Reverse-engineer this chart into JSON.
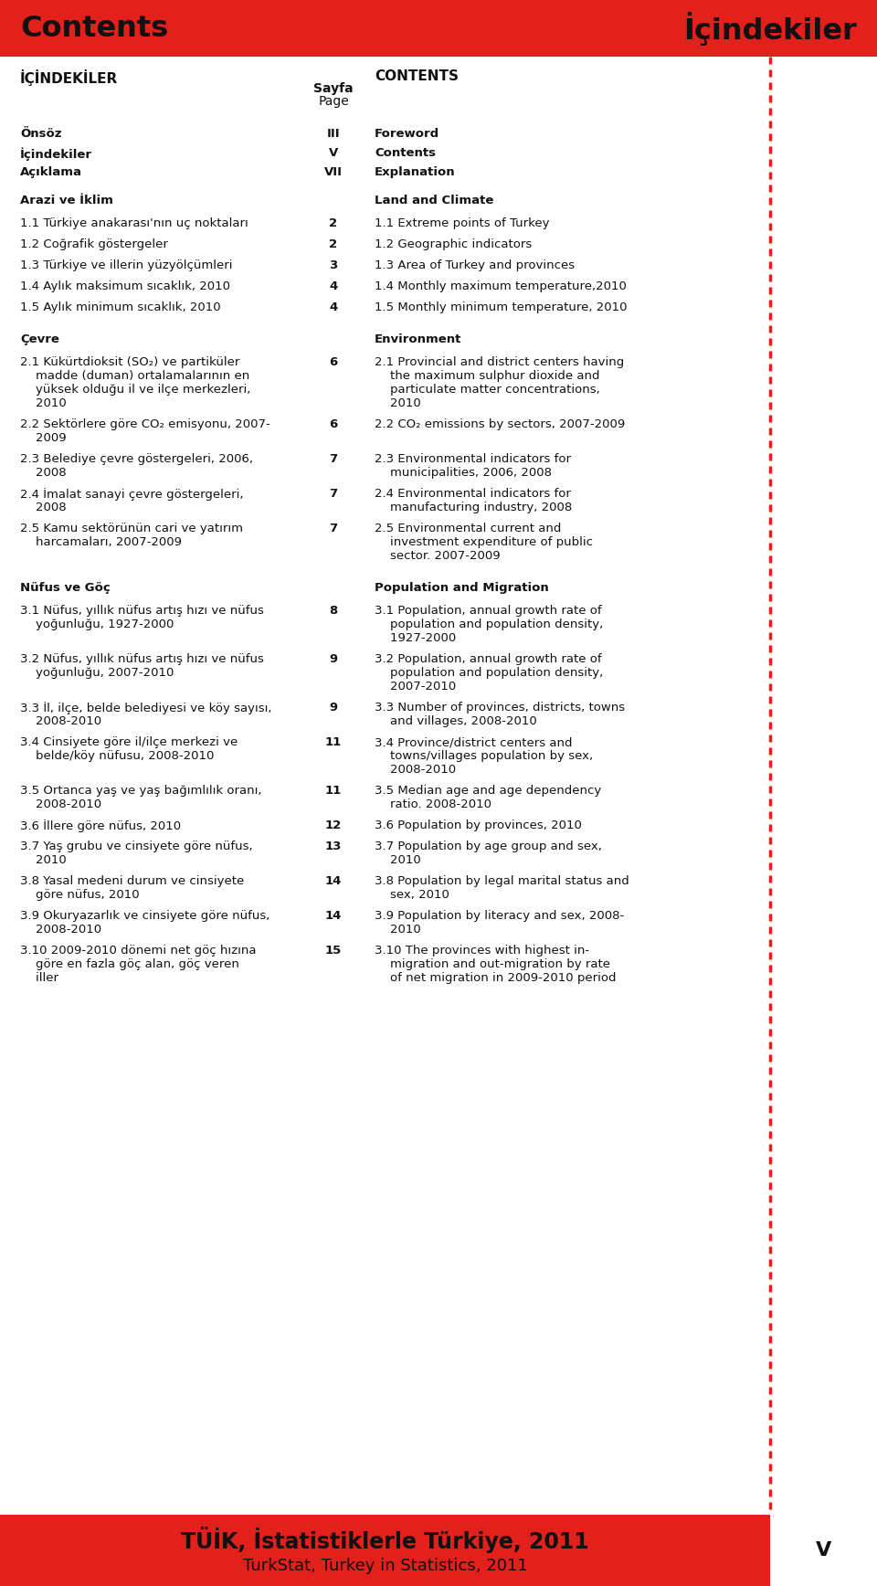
{
  "header_bg": "#E2201C",
  "header_text_left": "Contents",
  "header_text_right": "İçindekiler",
  "header_text_color": "#1a1a1a",
  "bg_color": "#ffffff",
  "footer_bg": "#E2201C",
  "footer_text1": "TÜİK, İstatistiklerle Türkiye, 2011",
  "footer_text2": "TurkStat, Turkey in Statistics, 2011",
  "page_number": "V",
  "col_headers": [
    "İÇİNDEKİLER",
    "Sayfa",
    "Page",
    "CONTENTS"
  ],
  "section_rows": [
    [
      "Önsöz",
      "III",
      "Foreword"
    ],
    [
      "İçindekiler",
      "V",
      "Contents"
    ],
    [
      "Açıklama",
      "VII",
      "Explanation"
    ]
  ],
  "rows": [
    [
      "Arazi ve İklim",
      "",
      "Land and Climate"
    ],
    [
      "1.1 Türkiye anakarası'nın uç noktaları",
      "2",
      "1.1 Extreme points of Turkey"
    ],
    [
      "1.2 Coğrafik göstergeler",
      "2",
      "1.2 Geographic indicators"
    ],
    [
      "1.3 Türkiye ve illerin yüzyölçümleri",
      "3",
      "1.3 Area of Turkey and provinces"
    ],
    [
      "1.4 Aylık maksimum sıcaklık, 2010",
      "4",
      "1.4 Monthly maximum temperature,2010"
    ],
    [
      "1.5 Aylık minimum sıcaklık, 2010",
      "4",
      "1.5 Monthly minimum temperature, 2010"
    ],
    [
      "",
      "",
      ""
    ],
    [
      "Çevre",
      "",
      "Environment"
    ],
    [
      "2.1 Kükürtdioksit (SO₂) ve partiküler\n    madde (duman) ortalamalarının en\n    yüksek olduğu il ve ilçe merkezleri,\n    2010",
      "6",
      "2.1 Provincial and district centers having\n    the maximum sulphur dioxide and\n    particulate matter concentrations,\n    2010"
    ],
    [
      "2.2 Sektörlere göre CO₂ emisyonu, 2007-\n    2009",
      "6",
      "2.2 CO₂ emissions by sectors, 2007-2009"
    ],
    [
      "2.3 Belediye çevre göstergeleri, 2006,\n    2008",
      "7",
      "2.3 Environmental indicators for\n    municipalities, 2006, 2008"
    ],
    [
      "2.4 İmalat sanayi çevre göstergeleri,\n    2008",
      "7",
      "2.4 Environmental indicators for\n    manufacturing industry, 2008"
    ],
    [
      "2.5 Kamu sektörünün cari ve yatırım\n    harcamaları, 2007-2009",
      "7",
      "2.5 Environmental current and\n    investment expenditure of public\n    sector. 2007-2009"
    ],
    [
      "",
      "",
      ""
    ],
    [
      "Nüfus ve Göç",
      "",
      "Population and Migration"
    ],
    [
      "3.1 Nüfus, yıllık nüfus artış hızı ve nüfus\n    yoğunluğu, 1927-2000",
      "8",
      "3.1 Population, annual growth rate of\n    population and population density,\n    1927-2000"
    ],
    [
      "3.2 Nüfus, yıllık nüfus artış hızı ve nüfus\n    yoğunluğu, 2007-2010",
      "9",
      "3.2 Population, annual growth rate of\n    population and population density,\n    2007-2010"
    ],
    [
      "3.3 İl, ilçe, belde belediyesi ve köy sayısı,\n    2008-2010",
      "9",
      "3.3 Number of provinces, districts, towns\n    and villages, 2008-2010"
    ],
    [
      "3.4 Cinsiyete göre il/ilçe merkezi ve\n    belde/köy nüfusu, 2008-2010",
      "11",
      "3.4 Province/district centers and\n    towns/villages population by sex,\n    2008-2010"
    ],
    [
      "3.5 Ortanca yaş ve yaş bağımlılık oranı,\n    2008-2010",
      "11",
      "3.5 Median age and age dependency\n    ratio. 2008-2010"
    ],
    [
      "3.6 İllere göre nüfus, 2010",
      "12",
      "3.6 Population by provinces, 2010"
    ],
    [
      "3.7 Yaş grubu ve cinsiyete göre nüfus,\n    2010",
      "13",
      "3.7 Population by age group and sex,\n    2010"
    ],
    [
      "3.8 Yasal medeni durum ve cinsiyete\n    göre nüfus, 2010",
      "14",
      "3.8 Population by legal marital status and\n    sex, 2010"
    ],
    [
      "3.9 Okuryazarlık ve cinsiyete göre nüfus,\n    2008-2010",
      "14",
      "3.9 Population by literacy and sex, 2008-\n    2010"
    ],
    [
      "3.10 2009-2010 dönemi net göç hızına\n    göre en fazla göç alan, göç veren\n    iller",
      "15",
      "3.10 The provinces with highest in-\n    migration and out-migration by rate\n    of net migration in 2009-2010 period"
    ]
  ]
}
